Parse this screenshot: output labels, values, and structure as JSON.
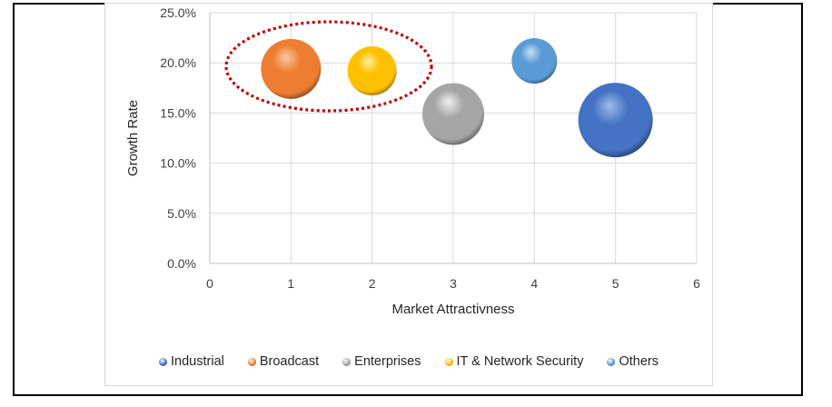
{
  "chart_data": {
    "type": "bubble",
    "title": "",
    "xlabel": "Market Attractivness",
    "ylabel": "Growth Rate",
    "xlim": [
      0,
      6
    ],
    "ylim": [
      0,
      25
    ],
    "x_ticks": [
      "0",
      "1",
      "2",
      "3",
      "4",
      "5",
      "6"
    ],
    "y_ticks": [
      "0.0%",
      "5.0%",
      "10.0%",
      "15.0%",
      "20.0%",
      "25.0%"
    ],
    "grid": true,
    "legend_position": "bottom",
    "series": [
      {
        "name": "Industrial",
        "x": 5,
        "y": 14.3,
        "size": 41,
        "color": "#4472c4",
        "highlight": "#9fbbe8"
      },
      {
        "name": "Broadcast",
        "x": 1,
        "y": 19.4,
        "size": 33,
        "color": "#ed7d31",
        "highlight": "#f8c9a3"
      },
      {
        "name": "Enterprises",
        "x": 3,
        "y": 14.9,
        "size": 34,
        "color": "#a5a5a5",
        "highlight": "#f0f0f0"
      },
      {
        "name": "IT & Network Security",
        "x": 2,
        "y": 19.2,
        "size": 27,
        "color": "#ffc000",
        "highlight": "#fff1a0"
      },
      {
        "name": "Others",
        "x": 4,
        "y": 20.2,
        "size": 25,
        "color": "#5b9bd5",
        "highlight": "#c4e0f8"
      }
    ],
    "annotations": [
      {
        "type": "dotted-ellipse",
        "color": "#c00000",
        "encloses": [
          "Broadcast",
          "IT & Network Security"
        ]
      }
    ]
  },
  "legend": {
    "items": [
      {
        "label": "Industrial",
        "color": "#4472c4"
      },
      {
        "label": "Broadcast",
        "color": "#ed7d31"
      },
      {
        "label": "Enterprises",
        "color": "#a5a5a5"
      },
      {
        "label": "IT & Network Security",
        "color": "#ffc000"
      },
      {
        "label": "Others",
        "color": "#5b9bd5"
      }
    ]
  }
}
